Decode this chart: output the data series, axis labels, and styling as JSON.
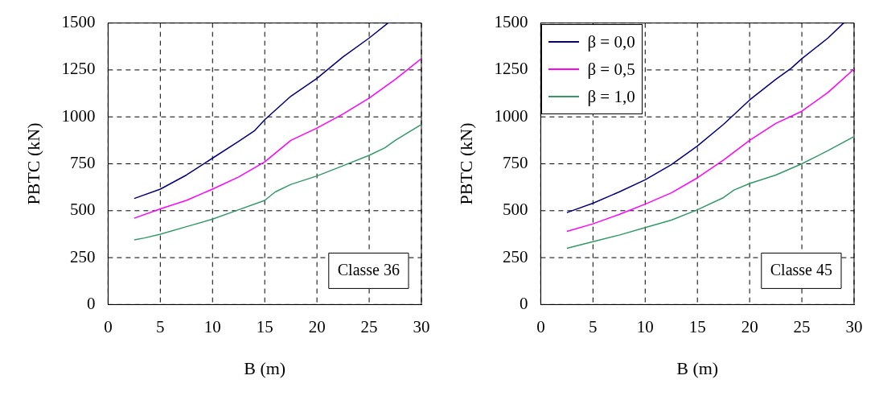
{
  "chart_data": [
    {
      "type": "line",
      "xlabel": "B (m)",
      "ylabel": "PBTC (kN)",
      "xlim": [
        0,
        30
      ],
      "ylim": [
        0,
        1500
      ],
      "xticks": [
        0,
        5,
        10,
        15,
        20,
        25,
        30
      ],
      "yticks": [
        0,
        250,
        500,
        750,
        1000,
        1250,
        1500
      ],
      "grid": true,
      "line_style": "solid",
      "annotations": [
        "Classe 36"
      ],
      "series": [
        {
          "color": "#000080",
          "x": [
            2.5,
            5,
            7.5,
            10,
            12.5,
            14,
            15,
            17.5,
            20,
            22.5,
            25,
            26.8
          ],
          "values": [
            565,
            615,
            690,
            780,
            870,
            925,
            985,
            1110,
            1205,
            1320,
            1420,
            1500
          ]
        },
        {
          "color": "#ff00ff",
          "x": [
            2.5,
            5,
            7.5,
            10,
            12.5,
            15,
            17.5,
            20,
            22.5,
            25,
            27.5,
            30
          ],
          "values": [
            460,
            510,
            555,
            615,
            680,
            760,
            875,
            940,
            1015,
            1100,
            1200,
            1310
          ]
        },
        {
          "color": "#339966",
          "x": [
            2.5,
            3.5,
            5,
            7.5,
            10,
            12.5,
            15,
            16,
            17.5,
            20,
            22.5,
            25,
            26.5,
            27.5,
            30
          ],
          "values": [
            345,
            355,
            375,
            415,
            455,
            505,
            555,
            600,
            640,
            685,
            740,
            795,
            835,
            875,
            960
          ]
        }
      ]
    },
    {
      "type": "line",
      "xlabel": "B (m)",
      "ylabel": "PBTC (kN)",
      "xlim": [
        0,
        30
      ],
      "ylim": [
        0,
        1500
      ],
      "xticks": [
        0,
        5,
        10,
        15,
        20,
        25,
        30
      ],
      "yticks": [
        0,
        250,
        500,
        750,
        1000,
        1250,
        1500
      ],
      "grid": true,
      "line_style": "solid",
      "legend": "top left",
      "annotations": [
        "Classe 45"
      ],
      "series": [
        {
          "name": "β = 0,0",
          "color": "#000080",
          "x": [
            2.5,
            5,
            7.5,
            10,
            12.5,
            15,
            17.5,
            20,
            22.5,
            24,
            25,
            27.5,
            29
          ],
          "values": [
            490,
            540,
            600,
            665,
            745,
            845,
            960,
            1090,
            1200,
            1260,
            1310,
            1420,
            1500
          ]
        },
        {
          "name": "β = 0,5",
          "color": "#ff00ff",
          "x": [
            2.5,
            5,
            7.5,
            10,
            12.5,
            15,
            17.5,
            20,
            22.5,
            25,
            27.5,
            30
          ],
          "values": [
            390,
            430,
            480,
            535,
            595,
            675,
            770,
            875,
            965,
            1030,
            1130,
            1255
          ]
        },
        {
          "name": "β = 1,0",
          "color": "#339966",
          "x": [
            2.5,
            5,
            7.5,
            10,
            12.5,
            15,
            17.5,
            18.5,
            20,
            22.5,
            25,
            27.5,
            30
          ],
          "values": [
            300,
            335,
            370,
            410,
            450,
            505,
            570,
            610,
            645,
            690,
            750,
            820,
            895
          ]
        }
      ]
    }
  ]
}
